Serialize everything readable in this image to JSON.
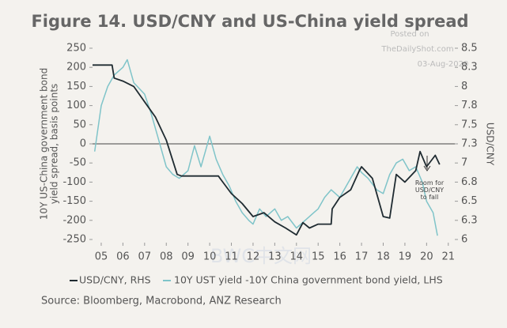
{
  "chart_data": {
    "type": "line",
    "title": "Figure 14. USD/CNY and US-China yield spread",
    "y_label": "10Y US-China government bond yield spread, basis points",
    "y2_label": "USD/CNY",
    "source": "Source: Bloomberg, Macrobond, ANZ Research",
    "annotation": "Room for USD/CNY to fall",
    "watermark": [
      "Posted on",
      "TheDailyShot.com",
      "03-Aug-2020",
      "BWC中文网"
    ],
    "xlim": [
      2004.6,
      2021.3
    ],
    "xticks": [
      {
        "value": 2005,
        "label": "05"
      },
      {
        "value": 2006,
        "label": "06"
      },
      {
        "value": 2007,
        "label": "07"
      },
      {
        "value": 2008,
        "label": "08"
      },
      {
        "value": 2009,
        "label": "09"
      },
      {
        "value": 2010,
        "label": "10"
      },
      {
        "value": 2011,
        "label": "11"
      },
      {
        "value": 2012,
        "label": "12"
      },
      {
        "value": 2013,
        "label": "13"
      },
      {
        "value": 2014,
        "label": "14"
      },
      {
        "value": 2015,
        "label": "15"
      },
      {
        "value": 2016,
        "label": "16"
      },
      {
        "value": 2017,
        "label": "17"
      },
      {
        "value": 2018,
        "label": "18"
      },
      {
        "value": 2019,
        "label": "19"
      },
      {
        "value": 2020,
        "label": "20"
      },
      {
        "value": 2021,
        "label": "21"
      }
    ],
    "ylim": [
      -250,
      250
    ],
    "yticks": [
      250,
      200,
      150,
      100,
      50,
      0,
      -50,
      -100,
      -150,
      -200,
      -250
    ],
    "y2lim": [
      6.0,
      8.5
    ],
    "y2ticks": [
      8.5,
      {
        "value": 8.25,
        "label": "8.3"
      },
      8.0,
      {
        "value": 7.75,
        "label": "7.8"
      },
      7.5,
      {
        "value": 7.25,
        "label": "7.3"
      },
      7.0,
      {
        "value": 6.75,
        "label": "6.8"
      },
      6.5,
      {
        "value": 6.25,
        "label": "6.3"
      },
      6.0
    ],
    "series": [
      {
        "name": "USD/CNY, RHS",
        "color": "#1f2b31",
        "axis": "y2",
        "x": [
          2004.6,
          2005.5,
          2005.6,
          2006.0,
          2006.5,
          2007.0,
          2007.5,
          2008.0,
          2008.5,
          2008.7,
          2010.4,
          2010.5,
          2011.0,
          2011.5,
          2012.0,
          2012.5,
          2013.0,
          2013.5,
          2014.0,
          2014.3,
          2014.6,
          2015.0,
          2015.6,
          2015.65,
          2016.0,
          2016.5,
          2016.9,
          2017.0,
          2017.5,
          2018.0,
          2018.3,
          2018.6,
          2019.0,
          2019.5,
          2019.7,
          2020.0,
          2020.4,
          2020.6
        ],
        "values": [
          8.28,
          8.28,
          8.11,
          8.07,
          8.0,
          7.8,
          7.6,
          7.3,
          6.85,
          6.83,
          6.83,
          6.79,
          6.6,
          6.47,
          6.3,
          6.35,
          6.23,
          6.15,
          6.06,
          6.22,
          6.15,
          6.2,
          6.2,
          6.4,
          6.55,
          6.65,
          6.9,
          6.95,
          6.8,
          6.3,
          6.28,
          6.85,
          6.75,
          6.9,
          7.15,
          6.95,
          7.1,
          6.98
        ]
      },
      {
        "name": "10Y UST yield -10Y China government bond yield, LHS",
        "color": "#7fc4c9",
        "axis": "y",
        "x": [
          2004.7,
          2005.0,
          2005.3,
          2005.6,
          2006.0,
          2006.2,
          2006.5,
          2007.0,
          2007.3,
          2007.6,
          2008.0,
          2008.3,
          2008.6,
          2009.0,
          2009.3,
          2009.6,
          2010.0,
          2010.3,
          2010.6,
          2010.9,
          2011.2,
          2011.5,
          2011.8,
          2012.0,
          2012.3,
          2012.6,
          2013.0,
          2013.3,
          2013.6,
          2014.0,
          2014.4,
          2014.8,
          2015.0,
          2015.3,
          2015.6,
          2016.0,
          2016.4,
          2016.8,
          2017.0,
          2017.3,
          2017.7,
          2018.0,
          2018.3,
          2018.6,
          2018.9,
          2019.2,
          2019.5,
          2019.8,
          2020.0,
          2020.3,
          2020.5
        ],
        "values": [
          -20,
          100,
          150,
          180,
          200,
          220,
          160,
          130,
          80,
          20,
          -60,
          -80,
          -90,
          -70,
          -5,
          -60,
          20,
          -40,
          -80,
          -110,
          -150,
          -180,
          -200,
          -210,
          -170,
          -190,
          -170,
          -200,
          -190,
          -220,
          -200,
          -180,
          -170,
          -140,
          -120,
          -140,
          -100,
          -60,
          -75,
          -90,
          -120,
          -130,
          -80,
          -50,
          -40,
          -70,
          -60,
          -100,
          -150,
          -180,
          -240
        ]
      }
    ]
  }
}
